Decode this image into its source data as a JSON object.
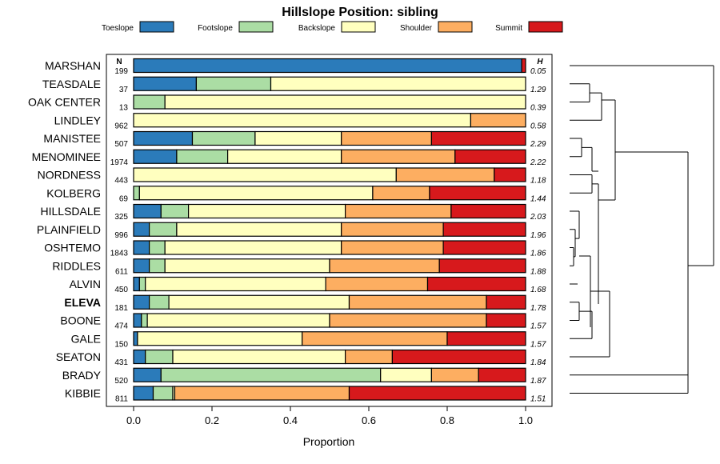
{
  "chart_data": {
    "type": "bar",
    "orientation": "horizontal",
    "stacked": true,
    "title": "Hillslope Position: sibling",
    "xlabel": "Proportion",
    "xlim": [
      0,
      1
    ],
    "x_ticks": [
      "0.0",
      "0.2",
      "0.4",
      "0.6",
      "0.8",
      "1.0"
    ],
    "x_tick_values": [
      0,
      0.2,
      0.4,
      0.6,
      0.8,
      1.0
    ],
    "n_header": "N",
    "h_header": "H",
    "legend": [
      {
        "name": "Toeslope",
        "color": "#2b7bba"
      },
      {
        "name": "Footslope",
        "color": "#abdda4"
      },
      {
        "name": "Backslope",
        "color": "#ffffbf"
      },
      {
        "name": "Shoulder",
        "color": "#fdae61"
      },
      {
        "name": "Summit",
        "color": "#d7191c"
      }
    ],
    "highlight": "ELEVA",
    "rows": [
      {
        "name": "MARSHAN",
        "n": "199",
        "h": "0.05",
        "values": [
          0.99,
          0,
          0,
          0,
          0.01
        ]
      },
      {
        "name": "TEASDALE",
        "n": "37",
        "h": "1.29",
        "values": [
          0.16,
          0.19,
          0.65,
          0,
          0
        ]
      },
      {
        "name": "OAK CENTER",
        "n": "13",
        "h": "0.39",
        "values": [
          0,
          0.08,
          0.92,
          0,
          0
        ]
      },
      {
        "name": "LINDLEY",
        "n": "962",
        "h": "0.58",
        "values": [
          0,
          0,
          0.86,
          0.14,
          0
        ]
      },
      {
        "name": "MANISTEE",
        "n": "507",
        "h": "2.29",
        "values": [
          0.15,
          0.16,
          0.22,
          0.23,
          0.24
        ]
      },
      {
        "name": "MENOMINEE",
        "n": "1974",
        "h": "2.22",
        "values": [
          0.11,
          0.13,
          0.29,
          0.29,
          0.18
        ]
      },
      {
        "name": "NORDNESS",
        "n": "443",
        "h": "1.18",
        "values": [
          0,
          0,
          0.67,
          0.25,
          0.08
        ]
      },
      {
        "name": "KOLBERG",
        "n": "69",
        "h": "1.44",
        "values": [
          0,
          0.015,
          0.595,
          0.145,
          0.245
        ]
      },
      {
        "name": "HILLSDALE",
        "n": "325",
        "h": "2.03",
        "values": [
          0.07,
          0.07,
          0.4,
          0.27,
          0.19
        ]
      },
      {
        "name": "PLAINFIELD",
        "n": "996",
        "h": "1.96",
        "values": [
          0.04,
          0.07,
          0.42,
          0.26,
          0.21
        ]
      },
      {
        "name": "OSHTEMO",
        "n": "1843",
        "h": "1.86",
        "values": [
          0.04,
          0.04,
          0.45,
          0.26,
          0.21
        ]
      },
      {
        "name": "RIDDLES",
        "n": "611",
        "h": "1.88",
        "values": [
          0.04,
          0.04,
          0.42,
          0.28,
          0.22
        ]
      },
      {
        "name": "ALVIN",
        "n": "450",
        "h": "1.68",
        "values": [
          0.015,
          0.015,
          0.46,
          0.26,
          0.25
        ]
      },
      {
        "name": "ELEVA",
        "n": "181",
        "h": "1.78",
        "values": [
          0.04,
          0.05,
          0.46,
          0.35,
          0.1
        ]
      },
      {
        "name": "BOONE",
        "n": "474",
        "h": "1.57",
        "values": [
          0.02,
          0.015,
          0.465,
          0.4,
          0.1
        ]
      },
      {
        "name": "GALE",
        "n": "150",
        "h": "1.57",
        "values": [
          0.01,
          0,
          0.42,
          0.37,
          0.2
        ]
      },
      {
        "name": "SEATON",
        "n": "431",
        "h": "1.84",
        "values": [
          0.03,
          0.07,
          0.44,
          0.12,
          0.34
        ]
      },
      {
        "name": "BRADY",
        "n": "520",
        "h": "1.87",
        "values": [
          0.07,
          0.56,
          0.13,
          0.12,
          0.12
        ]
      },
      {
        "name": "KIBBIE",
        "n": "811",
        "h": "1.51",
        "values": [
          0.05,
          0.05,
          0.005,
          0.445,
          0.45
        ]
      }
    ]
  }
}
